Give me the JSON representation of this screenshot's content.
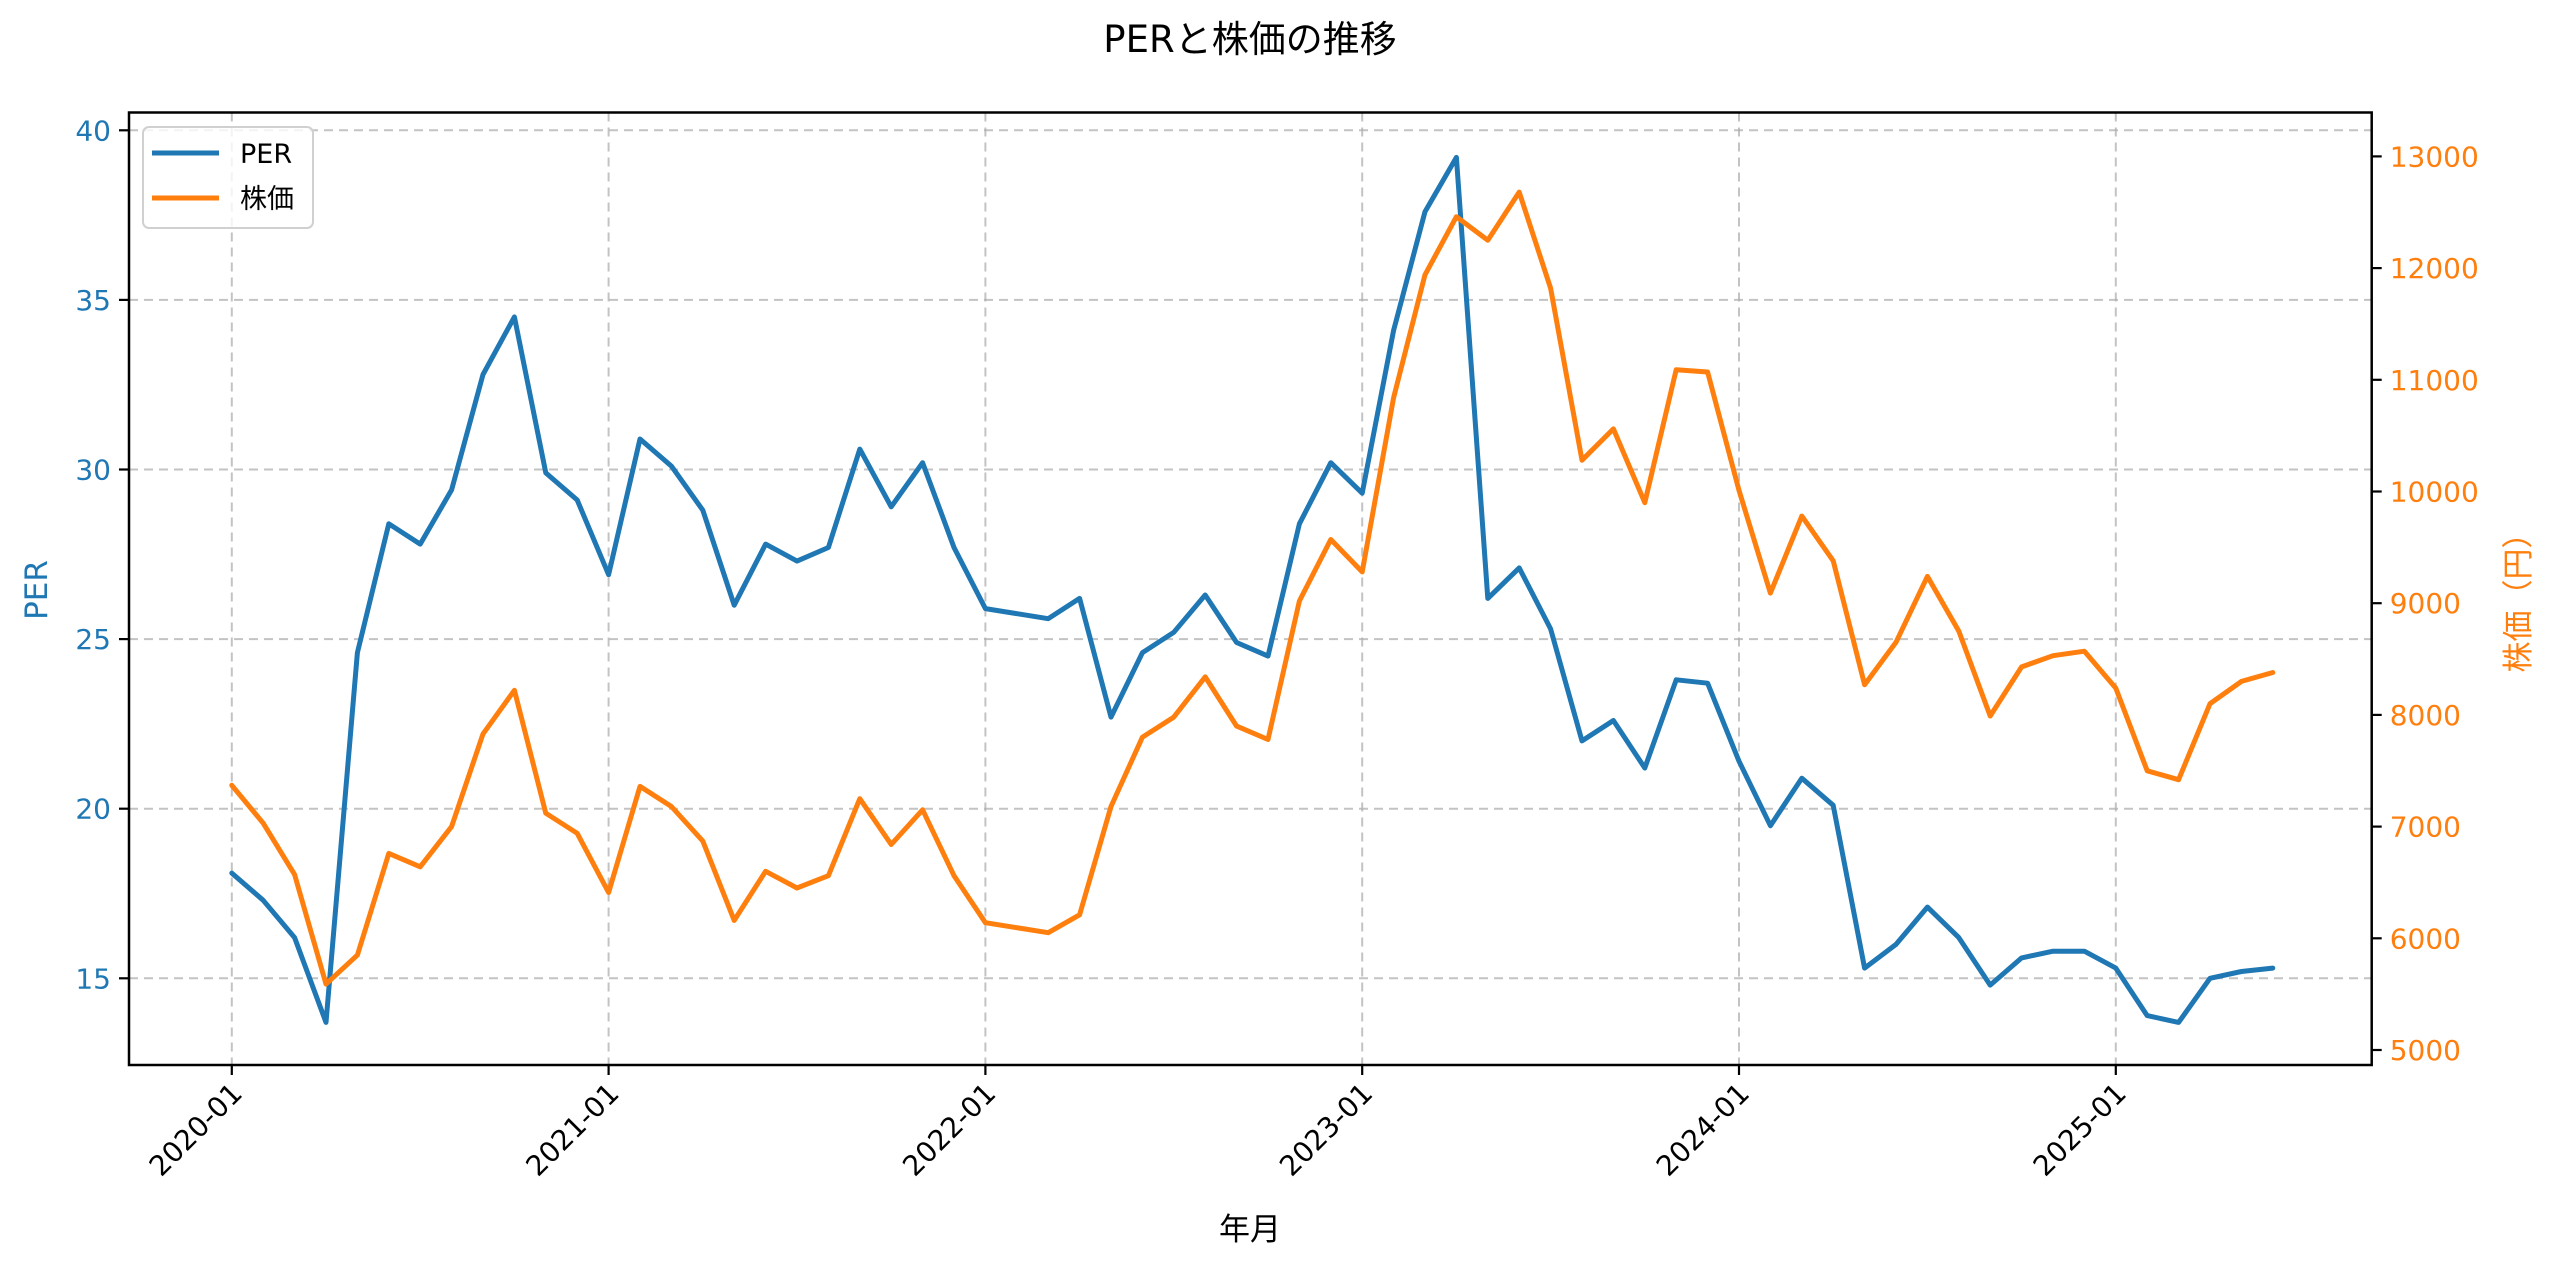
{
  "colors": {
    "per": "#1f77b4",
    "price": "#ff7f0e",
    "axis": "#000000",
    "grid": "#b0b0b0"
  },
  "chart_data": {
    "type": "line",
    "title": "PERと株価の推移",
    "xlabel": "年月",
    "ylabel": "PER",
    "ylabel_right": "株価（円）",
    "ylim": [
      12.5,
      40.5
    ],
    "ylim_right": [
      4900,
      13300
    ],
    "yticks": [
      15,
      20,
      25,
      30,
      35,
      40
    ],
    "yticks_right": [
      5000,
      6000,
      7000,
      8000,
      9000,
      10000,
      11000,
      12000,
      13000
    ],
    "xticks": [
      "2020-01",
      "2021-01",
      "2022-01",
      "2023-01",
      "2024-01",
      "2025-01"
    ],
    "grid": true,
    "legend_position": "upper left",
    "legend": [
      "PER",
      "株価"
    ],
    "x": [
      "2020-01",
      "2020-02",
      "2020-03",
      "2020-04",
      "2020-05",
      "2020-06",
      "2020-07",
      "2020-08",
      "2020-09",
      "2020-10",
      "2020-11",
      "2020-12",
      "2021-01",
      "2021-02",
      "2021-03",
      "2021-04",
      "2021-05",
      "2021-06",
      "2021-07",
      "2021-08",
      "2021-09",
      "2021-10",
      "2021-11",
      "2021-12",
      "2022-01",
      "2022-03",
      "2022-04",
      "2022-05",
      "2022-06",
      "2022-07",
      "2022-08",
      "2022-09",
      "2022-10",
      "2022-11",
      "2022-12",
      "2023-01",
      "2023-02",
      "2023-03",
      "2023-04",
      "2023-05",
      "2023-06",
      "2023-07",
      "2023-08",
      "2023-09",
      "2023-10",
      "2023-11",
      "2023-12",
      "2024-01",
      "2024-02",
      "2024-03",
      "2024-04",
      "2024-05",
      "2024-06",
      "2024-07",
      "2024-08",
      "2024-09",
      "2024-10",
      "2024-11",
      "2024-12",
      "2025-01",
      "2025-02",
      "2025-03",
      "2025-04",
      "2025-05",
      "2025-06"
    ],
    "series": [
      {
        "name": "PER",
        "axis": "left",
        "values": [
          18.1,
          17.3,
          16.2,
          13.7,
          24.6,
          28.4,
          27.8,
          29.4,
          32.8,
          34.5,
          29.9,
          29.1,
          26.9,
          30.9,
          30.1,
          28.8,
          26.0,
          27.8,
          27.3,
          27.7,
          30.6,
          28.9,
          30.2,
          27.7,
          25.9,
          25.6,
          26.2,
          22.7,
          24.6,
          25.2,
          26.3,
          24.9,
          24.5,
          28.4,
          30.2,
          29.3,
          34.1,
          37.6,
          39.2,
          26.2,
          27.1,
          25.3,
          22.0,
          22.6,
          21.2,
          23.8,
          23.7,
          21.4,
          19.5,
          20.9,
          20.1,
          15.3,
          16.0,
          17.1,
          16.2,
          14.8,
          15.6,
          15.8,
          15.8,
          15.3,
          13.9,
          13.7,
          15.0,
          15.2,
          15.3
        ]
      },
      {
        "name": "株価",
        "axis": "right",
        "values": [
          7370,
          7030,
          6570,
          5590,
          5850,
          6760,
          6640,
          7000,
          7830,
          8220,
          7120,
          6940,
          6410,
          7360,
          7180,
          6870,
          6160,
          6600,
          6450,
          6560,
          7250,
          6840,
          7150,
          6560,
          6140,
          6050,
          6210,
          7180,
          7800,
          7980,
          8340,
          7900,
          7780,
          9020,
          9570,
          9280,
          10840,
          11940,
          12460,
          12250,
          12680,
          11820,
          10280,
          10560,
          9900,
          11090,
          11070,
          10010,
          9090,
          9780,
          9380,
          8270,
          8650,
          9240,
          8750,
          7990,
          8430,
          8530,
          8570,
          8240,
          7500,
          7420,
          8100,
          8300,
          8380
        ]
      }
    ]
  }
}
